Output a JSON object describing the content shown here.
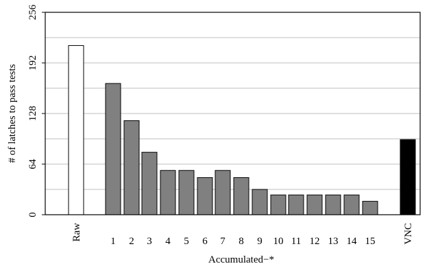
{
  "chart_data": {
    "type": "bar",
    "title": "",
    "xlabel": "Accumulated−*",
    "ylabel": "# of latches to pass tests",
    "ylim": [
      0,
      256
    ],
    "yticks": [
      0,
      64,
      128,
      192,
      256
    ],
    "ytick_labels": [
      "0",
      "64",
      "128",
      "192",
      "256"
    ],
    "grid": "horizontal",
    "categories": [
      "Raw",
      "1",
      "2",
      "3",
      "4",
      "5",
      "6",
      "7",
      "8",
      "9",
      "10",
      "11",
      "12",
      "13",
      "14",
      "15",
      "VNC"
    ],
    "values": [
      214,
      166,
      119,
      79,
      56,
      56,
      47,
      56,
      47,
      32,
      25,
      25,
      25,
      25,
      25,
      17,
      95
    ],
    "bar_groups": [
      "raw",
      "accumulated",
      "accumulated",
      "accumulated",
      "accumulated",
      "accumulated",
      "accumulated",
      "accumulated",
      "accumulated",
      "accumulated",
      "accumulated",
      "accumulated",
      "accumulated",
      "accumulated",
      "accumulated",
      "accumulated",
      "vnc"
    ],
    "colors": {
      "raw": "#ffffff",
      "accumulated": "#808080",
      "vnc": "#000000",
      "edge": "#000000",
      "grid": "#bfbfbf"
    }
  }
}
